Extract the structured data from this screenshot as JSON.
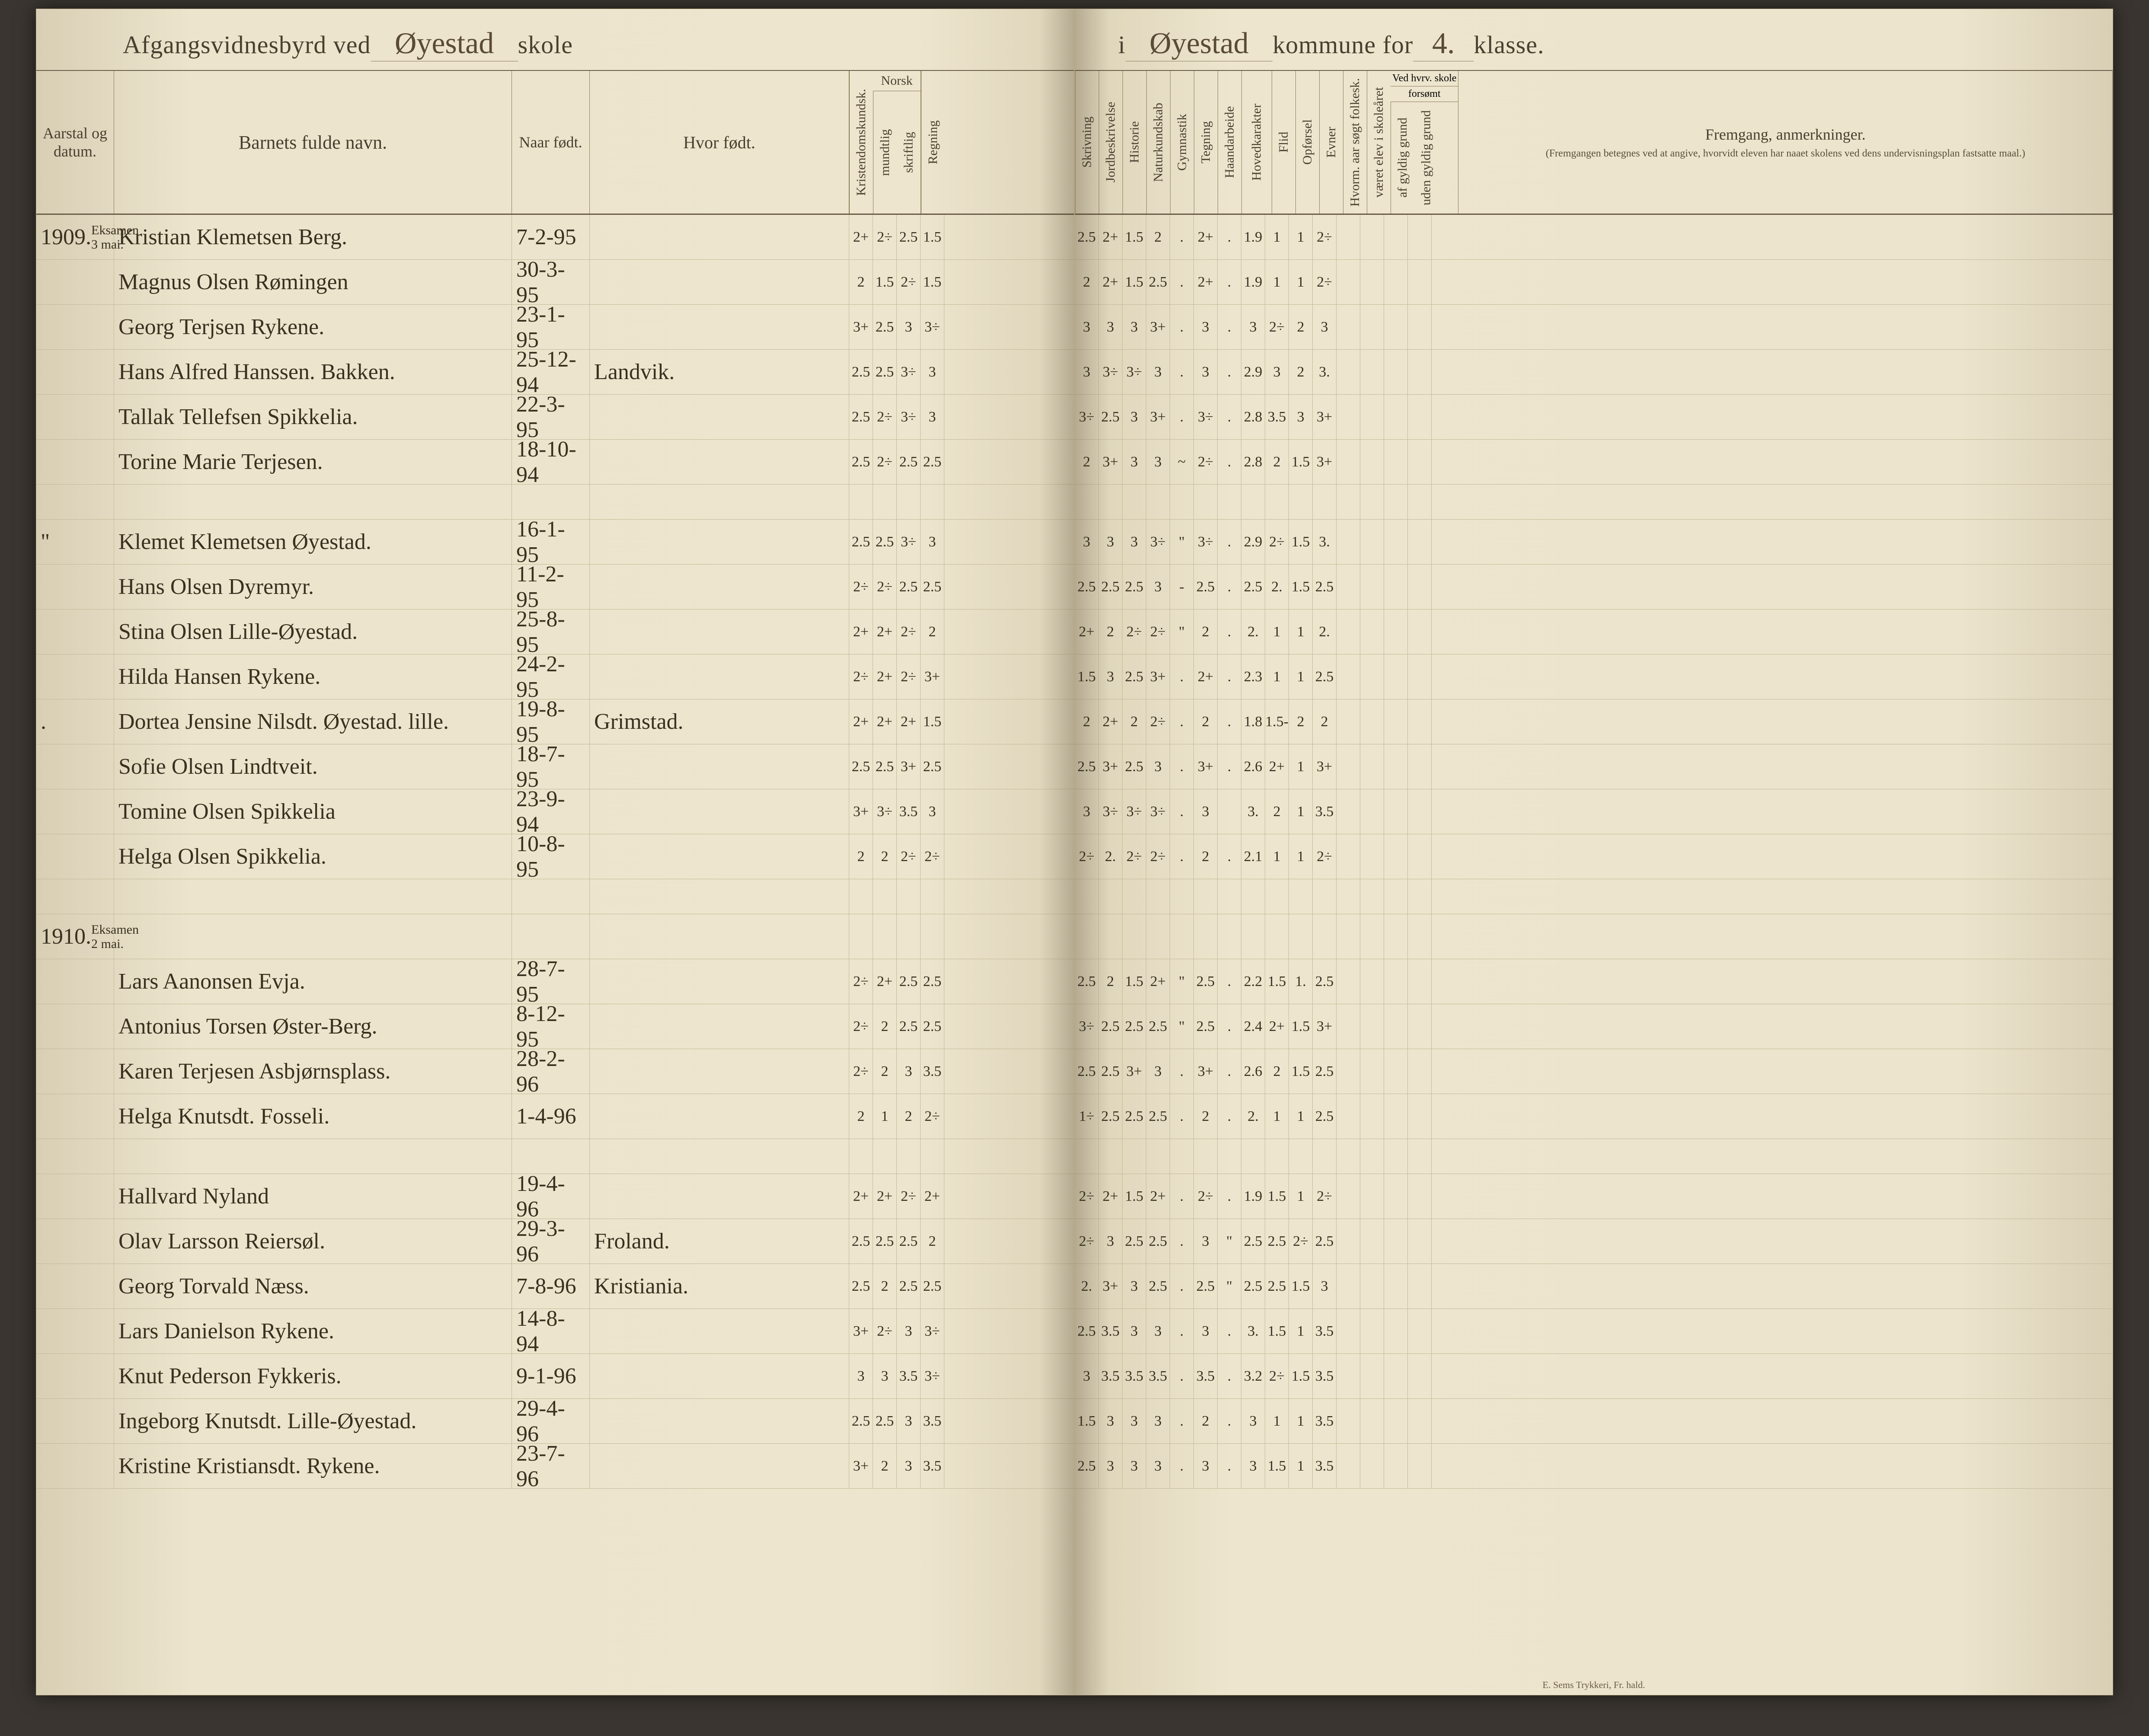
{
  "title": {
    "left_printed_1": "Afgangsvidnesbyrd ved",
    "left_script": "Øyestad",
    "left_printed_2": "skole",
    "right_printed_1": "i",
    "right_script_1": "Øyestad",
    "right_printed_2": "kommune for",
    "right_script_2": "4.",
    "right_printed_3": "klasse."
  },
  "headers": {
    "date": "Aarstal og datum.",
    "name": "Barnets fulde navn.",
    "born": "Naar født.",
    "where": "Hvor født.",
    "kristendom": "Kristendomskundsk.",
    "norsk": "Norsk",
    "mundtlig": "mundtlig",
    "skriftlig": "skriftlig",
    "regning": "Regning",
    "skrivning": "Skrivning",
    "jordbesk": "Jordbeskrivelse",
    "historie": "Historie",
    "naturk": "Naturkundskab",
    "gymnastik": "Gymnastik",
    "tegning": "Tegning",
    "haandarb": "Haandarbeide",
    "hovedkar": "Hovedkarakter",
    "flid": "Flid",
    "opforsel": "Opførsel",
    "evner": "Evner",
    "hvorom": "Hvorm. aar søgt folkesk.",
    "veret": "været elev i skoleåret",
    "vedskole": "Ved hvrv. skole",
    "forsomt": "forsømt",
    "gyldig": "af gyldig grund",
    "uden": "uden gyldig grund",
    "remarks": "Fremgang, anmerkninger.",
    "remarks_sub": "(Fremgangen betegnes ved at angive, hvorvidt eleven har naaet skolens ved dens undervisningsplan fastsatte maal.)"
  },
  "years": {
    "y1909": "1909.",
    "y1909sub": "Eksamen 3 mai.",
    "ditto": "\"",
    "y1910": "1910.",
    "y1910sub": "Eksamen 2 mai."
  },
  "rows": [
    {
      "name": "Kristian Klemetsen Berg.",
      "born": "7-2-95",
      "where": "",
      "g": [
        "2+",
        "2÷",
        "2.5",
        "1.5",
        "2.5",
        "2+",
        "1.5",
        "2",
        ".",
        "2+",
        ".",
        "1.9",
        "1",
        "1",
        "2÷"
      ]
    },
    {
      "name": "Magnus Olsen Rømingen",
      "born": "30-3-95",
      "where": "",
      "g": [
        "2",
        "1.5",
        "2÷",
        "1.5",
        "2",
        "2+",
        "1.5",
        "2.5",
        ".",
        "2+",
        ".",
        "1.9",
        "1",
        "1",
        "2÷"
      ]
    },
    {
      "name": "Georg Terjsen Rykene.",
      "born": "23-1-95",
      "where": "",
      "g": [
        "3+",
        "2.5",
        "3",
        "3÷",
        "3",
        "3",
        "3",
        "3+",
        ".",
        "3",
        ".",
        "3",
        "2÷",
        "2",
        "3"
      ]
    },
    {
      "name": "Hans Alfred Hanssen. Bakken.",
      "born": "25-12-94",
      "where": "Landvik.",
      "g": [
        "2.5",
        "2.5",
        "3÷",
        "3",
        "3",
        "3÷",
        "3÷",
        "3",
        ".",
        "3",
        ".",
        "2.9",
        "3",
        "2",
        "3."
      ]
    },
    {
      "name": "Tallak Tellefsen Spikkelia.",
      "born": "22-3-95",
      "where": "",
      "g": [
        "2.5",
        "2÷",
        "3÷",
        "3",
        "3÷",
        "2.5",
        "3",
        "3+",
        ".",
        "3÷",
        ".",
        "2.8",
        "3.5",
        "3",
        "3+"
      ]
    },
    {
      "name": "Torine Marie Terjesen.",
      "born": "18-10-94",
      "where": "",
      "g": [
        "2.5",
        "2÷",
        "2.5",
        "2.5",
        "2",
        "3+",
        "3",
        "3",
        "~",
        "2÷",
        ".",
        "2.8",
        "2",
        "1.5",
        "3+"
      ]
    },
    {
      "name": "Klemet Klemetsen Øyestad.",
      "born": "16-1-95",
      "where": "",
      "g": [
        "2.5",
        "2.5",
        "3÷",
        "3",
        "3",
        "3",
        "3",
        "3÷",
        "\"",
        "3÷",
        ".",
        "2.9",
        "2÷",
        "1.5",
        "3."
      ]
    },
    {
      "name": "Hans Olsen Dyremyr.",
      "born": "11-2-95",
      "where": "",
      "g": [
        "2÷",
        "2÷",
        "2.5",
        "2.5",
        "2.5",
        "2.5",
        "2.5",
        "3",
        "-",
        "2.5",
        ".",
        "2.5",
        "2.",
        "1.5",
        "2.5"
      ]
    },
    {
      "name": "Stina Olsen Lille-Øyestad.",
      "born": "25-8-95",
      "where": "",
      "g": [
        "2+",
        "2+",
        "2÷",
        "2",
        "2+",
        "2",
        "2÷",
        "2÷",
        "\"",
        "2",
        ".",
        "2.",
        "1",
        "1",
        "2."
      ]
    },
    {
      "name": "Hilda Hansen Rykene.",
      "born": "24-2-95",
      "where": "",
      "g": [
        "2÷",
        "2+",
        "2÷",
        "3+",
        "1.5",
        "3",
        "2.5",
        "3+",
        ".",
        "2+",
        ".",
        "2.3",
        "1",
        "1",
        "2.5"
      ]
    },
    {
      "name": "Dortea Jensine Nilsdt. Øyestad. lille.",
      "born": "19-8-95",
      "where": "Grimstad.",
      "g": [
        "2+",
        "2+",
        "2+",
        "1.5",
        "2",
        "2+",
        "2",
        "2÷",
        ".",
        "2",
        ".",
        "1.8",
        "1.5-",
        "2",
        "2"
      ]
    },
    {
      "name": "Sofie Olsen Lindtveit.",
      "born": "18-7-95",
      "where": "",
      "g": [
        "2.5",
        "2.5",
        "3+",
        "2.5",
        "2.5",
        "3+",
        "2.5",
        "3",
        ".",
        "3+",
        ".",
        "2.6",
        "2+",
        "1",
        "3+"
      ]
    },
    {
      "name": "Tomine Olsen Spikkelia",
      "born": "23-9-94",
      "where": "",
      "g": [
        "3+",
        "3÷",
        "3.5",
        "3",
        "3",
        "3÷",
        "3÷",
        "3÷",
        ".",
        "3",
        "",
        "3.",
        "2",
        "1",
        "3.5"
      ]
    },
    {
      "name": "Helga Olsen Spikkelia.",
      "born": "10-8-95",
      "where": "",
      "g": [
        "2",
        "2",
        "2÷",
        "2÷",
        "2÷",
        "2.",
        "2÷",
        "2÷",
        ".",
        "2",
        ".",
        "2.1",
        "1",
        "1",
        "2÷"
      ]
    },
    {
      "name": "Lars Aanonsen Evja.",
      "born": "28-7-95",
      "where": "",
      "g": [
        "2÷",
        "2+",
        "2.5",
        "2.5",
        "2.5",
        "2",
        "1.5",
        "2+",
        "\"",
        "2.5",
        ".",
        "2.2",
        "1.5",
        "1.",
        "2.5"
      ]
    },
    {
      "name": "Antonius Torsen Øster-Berg.",
      "born": "8-12-95",
      "where": "",
      "g": [
        "2÷",
        "2",
        "2.5",
        "2.5",
        "3÷",
        "2.5",
        "2.5",
        "2.5",
        "\"",
        "2.5",
        ".",
        "2.4",
        "2+",
        "1.5",
        "3+"
      ]
    },
    {
      "name": "Karen Terjesen Asbjørnsplass.",
      "born": "28-2-96",
      "where": "",
      "g": [
        "2÷",
        "2",
        "3",
        "3.5",
        "2.5",
        "2.5",
        "3+",
        "3",
        ".",
        "3+",
        ".",
        "2.6",
        "2",
        "1.5",
        "2.5"
      ]
    },
    {
      "name": "Helga Knutsdt. Fosseli.",
      "born": "1-4-96",
      "where": "",
      "g": [
        "2",
        "1",
        "2",
        "2÷",
        "1÷",
        "2.5",
        "2.5",
        "2.5",
        ".",
        "2",
        ".",
        "2.",
        "1",
        "1",
        "2.5"
      ]
    },
    {
      "name": "Hallvard Nyland",
      "born": "19-4-96",
      "where": "",
      "g": [
        "2+",
        "2+",
        "2÷",
        "2+",
        "2÷",
        "2+",
        "1.5",
        "2+",
        ".",
        "2÷",
        ".",
        "1.9",
        "1.5",
        "1",
        "2÷"
      ]
    },
    {
      "name": "Olav Larsson Reiersøl.",
      "born": "29-3-96",
      "where": "Froland.",
      "g": [
        "2.5",
        "2.5",
        "2.5",
        "2",
        "2÷",
        "3",
        "2.5",
        "2.5",
        ".",
        "3",
        "\"",
        "2.5",
        "2.5",
        "2÷",
        "2.5"
      ]
    },
    {
      "name": "Georg Torvald Næss.",
      "born": "7-8-96",
      "where": "Kristiania.",
      "g": [
        "2.5",
        "2",
        "2.5",
        "2.5",
        "2.",
        "3+",
        "3",
        "2.5",
        ".",
        "2.5",
        "\"",
        "2.5",
        "2.5",
        "1.5",
        "3"
      ]
    },
    {
      "name": "Lars Danielson Rykene.",
      "born": "14-8-94",
      "where": "",
      "g": [
        "3+",
        "2÷",
        "3",
        "3÷",
        "2.5",
        "3.5",
        "3",
        "3",
        ".",
        "3",
        ".",
        "3.",
        "1.5",
        "1",
        "3.5"
      ]
    },
    {
      "name": "Knut Pederson Fykkeris.",
      "born": "9-1-96",
      "where": "",
      "g": [
        "3",
        "3",
        "3.5",
        "3÷",
        "3",
        "3.5",
        "3.5",
        "3.5",
        ".",
        "3.5",
        ".",
        "3.2",
        "2÷",
        "1.5",
        "3.5"
      ]
    },
    {
      "name": "Ingeborg Knutsdt. Lille-Øyestad.",
      "born": "29-4-96",
      "where": "",
      "g": [
        "2.5",
        "2.5",
        "3",
        "3.5",
        "1.5",
        "3",
        "3",
        "3",
        ".",
        "2",
        ".",
        "3",
        "1",
        "1",
        "3.5"
      ]
    },
    {
      "name": "Kristine Kristiansdt. Rykene.",
      "born": "23-7-96",
      "where": "",
      "g": [
        "3+",
        "2",
        "3",
        "3.5",
        "2.5",
        "3",
        "3",
        "3",
        ".",
        "3",
        ".",
        "3",
        "1.5",
        "1",
        "3.5"
      ]
    }
  ],
  "printer": "E. Sems Trykkeri, Fr. hald."
}
